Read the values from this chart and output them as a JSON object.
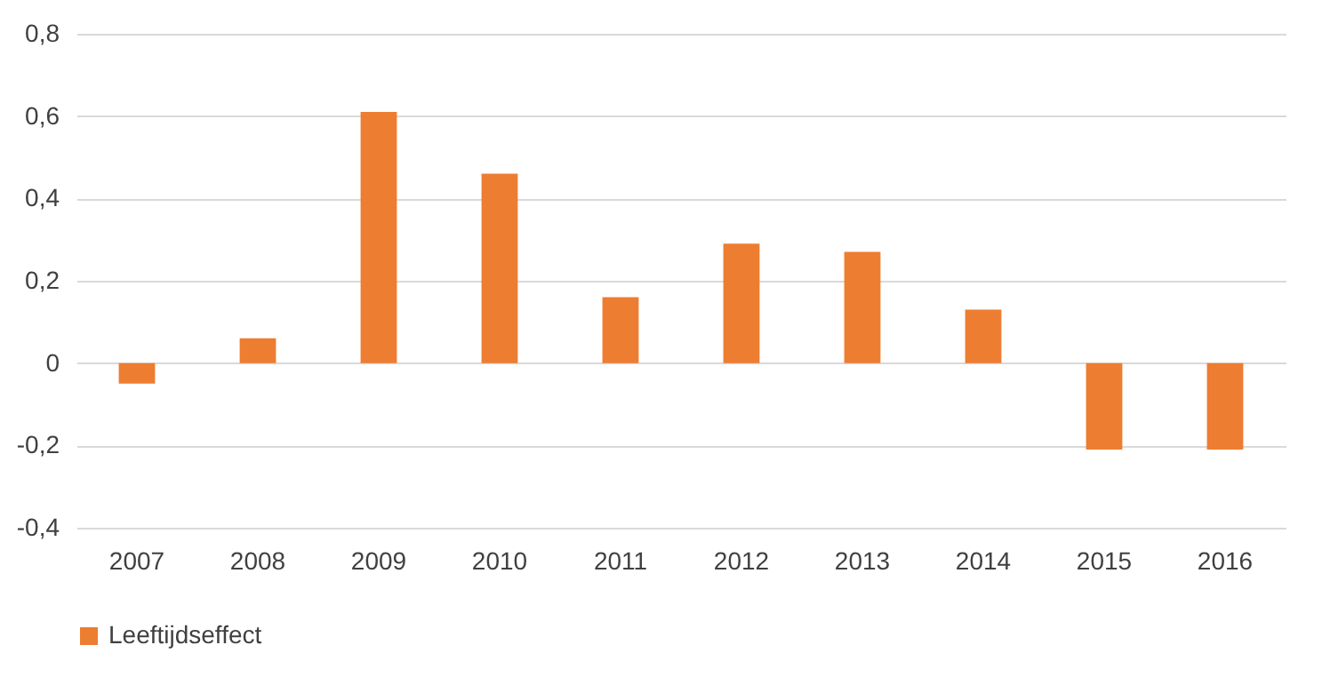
{
  "chart_data": {
    "type": "bar",
    "categories": [
      "2007",
      "2008",
      "2009",
      "2010",
      "2011",
      "2012",
      "2013",
      "2014",
      "2015",
      "2016"
    ],
    "series": [
      {
        "name": "Leeftijdseffect",
        "color": "#ed7d31",
        "values": [
          -0.05,
          0.06,
          0.61,
          0.46,
          0.16,
          0.29,
          0.27,
          0.13,
          -0.21,
          -0.21
        ]
      }
    ],
    "ylim": [
      -0.4,
      0.8
    ],
    "yticks": [
      {
        "value": -0.4,
        "label": "-0,4"
      },
      {
        "value": -0.2,
        "label": "-0,2"
      },
      0,
      {
        "value": 0.2,
        "label": "0,2"
      },
      {
        "value": 0.4,
        "label": "0,4"
      },
      {
        "value": 0.6,
        "label": "0,6"
      },
      {
        "value": 0.8,
        "label": "0,8"
      }
    ],
    "grid": "y",
    "legend": "bottom"
  }
}
